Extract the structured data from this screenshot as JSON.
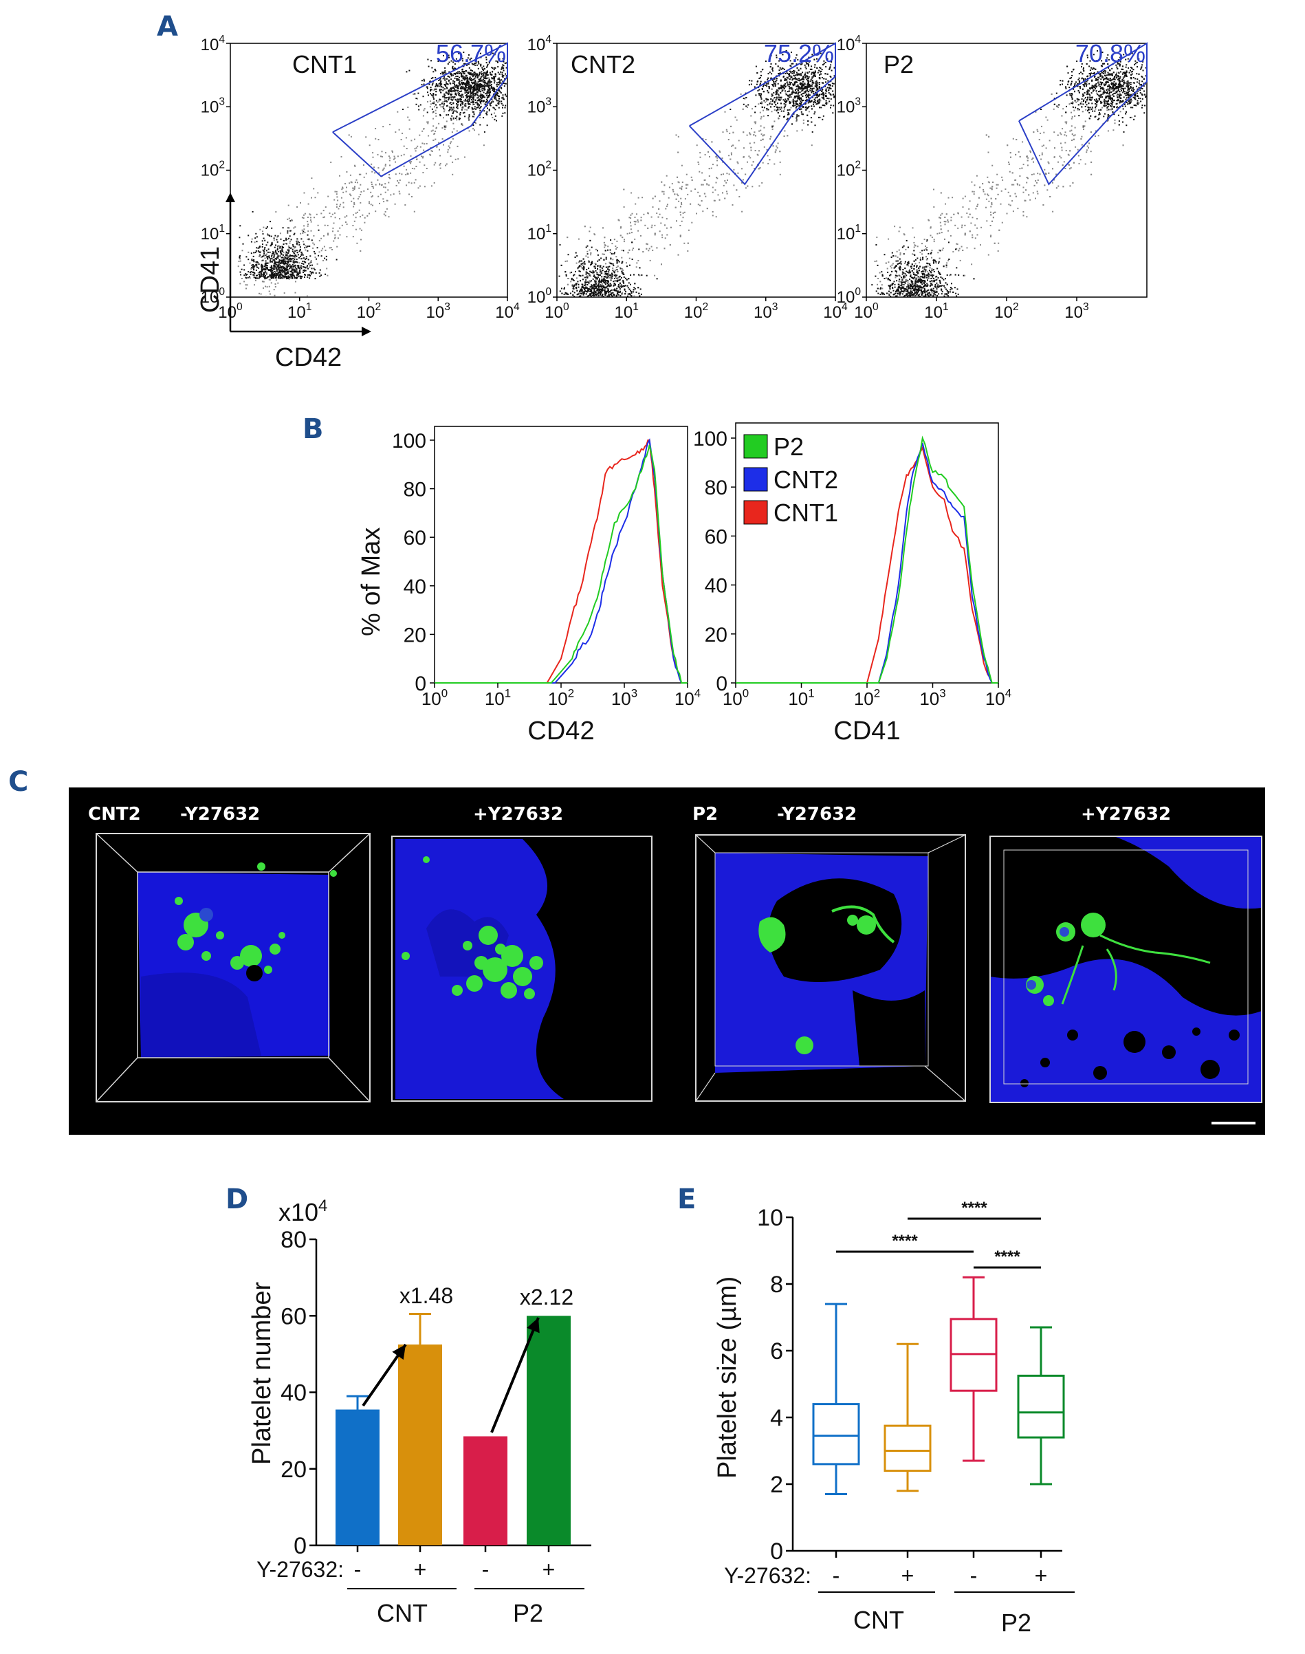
{
  "panels": {
    "A": "A",
    "B": "B",
    "C": "C",
    "D": "D",
    "E": "E"
  },
  "colors": {
    "gate": "#2b3fc7",
    "p2": "#22cc22",
    "cnt2": "#1d2ee8",
    "cnt1": "#e8261d",
    "bar_cnt_minus": "#1070c8",
    "bar_cnt_plus": "#d8900c",
    "bar_p2_minus": "#d81e4a",
    "bar_p2_plus": "#0a8a2a"
  },
  "chart_data": [
    {
      "type": "scatter",
      "panel": "A",
      "title": "CNT1",
      "gate_percent": "56.7%",
      "xlabel": "CD42",
      "ylabel": "CD41",
      "x_scale": "log",
      "y_scale": "log",
      "xlim": [
        1,
        10000
      ],
      "ylim": [
        1,
        10000
      ],
      "x_ticks": [
        "10^0",
        "10^1",
        "10^2",
        "10^3",
        "10^4"
      ],
      "y_ticks": [
        "10^0",
        "10^1",
        "10^2",
        "10^3",
        "10^4"
      ],
      "gate_polygon": [
        [
          30,
          400
        ],
        [
          10000,
          10000
        ],
        [
          10000,
          3000
        ],
        [
          3000,
          500
        ],
        [
          150,
          80
        ],
        [
          30,
          400
        ]
      ],
      "clusters": [
        {
          "x": 5,
          "y": 2,
          "density": "high"
        },
        {
          "x": 3000,
          "y": 2000,
          "density": "high"
        }
      ]
    },
    {
      "type": "scatter",
      "panel": "A",
      "title": "CNT2",
      "gate_percent": "75.2%",
      "x_scale": "log",
      "y_scale": "log",
      "xlim": [
        1,
        10000
      ],
      "ylim": [
        1,
        10000
      ],
      "x_ticks": [
        "10^0",
        "10^1",
        "10^2",
        "10^3",
        "10^4"
      ],
      "y_ticks": [
        "10^0",
        "10^1",
        "10^2",
        "10^3",
        "10^4"
      ],
      "gate_polygon": [
        [
          80,
          500
        ],
        [
          10000,
          10000
        ],
        [
          10000,
          3000
        ],
        [
          2500,
          800
        ],
        [
          500,
          60
        ],
        [
          80,
          500
        ]
      ],
      "clusters": [
        {
          "x": 4,
          "y": 1,
          "density": "medium"
        },
        {
          "x": 3000,
          "y": 2000,
          "density": "high"
        }
      ]
    },
    {
      "type": "scatter",
      "panel": "A",
      "title": "P2",
      "gate_percent": "70.8%",
      "x_scale": "log",
      "y_scale": "log",
      "xlim": [
        1,
        10000
      ],
      "ylim": [
        1,
        10000
      ],
      "x_ticks": [
        "10^0",
        "10^1",
        "10^2",
        "10^3"
      ],
      "y_ticks": [
        "10^0",
        "10^1",
        "10^2",
        "10^3",
        "10^4"
      ],
      "gate_polygon": [
        [
          150,
          600
        ],
        [
          10000,
          10000
        ],
        [
          10000,
          2500
        ],
        [
          3000,
          700
        ],
        [
          400,
          60
        ],
        [
          150,
          600
        ]
      ],
      "clusters": [
        {
          "x": 5,
          "y": 1,
          "density": "medium"
        },
        {
          "x": 3000,
          "y": 2000,
          "density": "high"
        }
      ]
    },
    {
      "type": "line",
      "panel": "B",
      "xlabel": "CD42",
      "ylabel": "% of Max",
      "x_scale": "log",
      "xlim": [
        1,
        10000
      ],
      "ylim": [
        0,
        100
      ],
      "x_ticks": [
        "10^0",
        "10^1",
        "10^2",
        "10^3",
        "10^4"
      ],
      "y_ticks": [
        "0",
        "20",
        "40",
        "60",
        "80",
        "100"
      ],
      "series": [
        {
          "name": "CNT1",
          "x": [
            60,
            100,
            150,
            200,
            300,
            400,
            500,
            700,
            1000,
            1500,
            2000,
            2500,
            3000,
            4000,
            6000,
            8000
          ],
          "y": [
            0,
            10,
            28,
            38,
            58,
            72,
            86,
            90,
            92,
            94,
            96,
            100,
            80,
            40,
            10,
            0
          ]
        },
        {
          "name": "CNT2",
          "x": [
            80,
            150,
            200,
            300,
            400,
            500,
            700,
            1000,
            1500,
            2000,
            2500,
            3000,
            4000,
            6000,
            8000
          ],
          "y": [
            0,
            8,
            14,
            20,
            30,
            42,
            55,
            66,
            80,
            92,
            100,
            85,
            45,
            10,
            0
          ]
        },
        {
          "name": "P2",
          "x": [
            70,
            150,
            200,
            300,
            400,
            500,
            700,
            1000,
            1500,
            2000,
            2500,
            3000,
            4000,
            6000,
            8000
          ],
          "y": [
            0,
            10,
            18,
            28,
            38,
            50,
            66,
            72,
            80,
            90,
            98,
            88,
            45,
            12,
            0
          ]
        }
      ]
    },
    {
      "type": "line",
      "panel": "B",
      "xlabel": "CD41",
      "x_scale": "log",
      "xlim": [
        1,
        10000
      ],
      "ylim": [
        0,
        100
      ],
      "x_ticks": [
        "10^0",
        "10^1",
        "10^2",
        "10^3",
        "10^4"
      ],
      "y_ticks": [
        "0",
        "20",
        "40",
        "60",
        "80",
        "100"
      ],
      "legend": [
        "P2",
        "CNT2",
        "CNT1"
      ],
      "series": [
        {
          "name": "CNT1",
          "x": [
            100,
            150,
            200,
            300,
            400,
            500,
            700,
            1000,
            1500,
            2000,
            3000,
            4000,
            6000,
            8000
          ],
          "y": [
            0,
            18,
            40,
            70,
            85,
            88,
            96,
            80,
            75,
            62,
            55,
            30,
            8,
            0
          ]
        },
        {
          "name": "CNT2",
          "x": [
            150,
            200,
            300,
            400,
            500,
            700,
            1000,
            1500,
            2000,
            3000,
            4000,
            6000,
            8000
          ],
          "y": [
            0,
            12,
            40,
            70,
            86,
            98,
            82,
            78,
            72,
            68,
            35,
            10,
            0
          ]
        },
        {
          "name": "P2",
          "x": [
            150,
            200,
            300,
            400,
            500,
            700,
            1000,
            1500,
            2000,
            3000,
            4000,
            6000,
            8000
          ],
          "y": [
            0,
            10,
            35,
            62,
            80,
            100,
            86,
            84,
            78,
            72,
            40,
            12,
            0
          ]
        }
      ]
    },
    {
      "type": "bar",
      "panel": "D",
      "ylabel": "Platelet number",
      "yunit": "x10^4",
      "ylim": [
        0,
        80
      ],
      "y_ticks": [
        "0",
        "20",
        "40",
        "60",
        "80"
      ],
      "row_label": "Y-27632:",
      "categories": [
        "-",
        "+",
        "-",
        "+"
      ],
      "groups": [
        "CNT",
        "P2"
      ],
      "values": [
        35.5,
        52.5,
        28.5,
        60
      ],
      "errors": [
        3.5,
        8,
        0,
        0
      ],
      "annotations": [
        "x1.48",
        "x2.12"
      ]
    },
    {
      "type": "box",
      "panel": "E",
      "ylabel": "Platelet size (µm)",
      "ylim": [
        0,
        10
      ],
      "y_ticks": [
        "0",
        "2",
        "4",
        "6",
        "8",
        "10"
      ],
      "row_label": "Y-27632:",
      "categories": [
        "-",
        "+",
        "-",
        "+"
      ],
      "groups": [
        "CNT",
        "P2"
      ],
      "boxes": [
        {
          "min": 1.7,
          "q1": 2.6,
          "median": 3.45,
          "q3": 4.4,
          "max": 7.4
        },
        {
          "min": 1.8,
          "q1": 2.4,
          "median": 3.0,
          "q3": 3.75,
          "max": 6.2
        },
        {
          "min": 2.7,
          "q1": 4.8,
          "median": 5.9,
          "q3": 6.95,
          "max": 8.2
        },
        {
          "min": 2.0,
          "q1": 3.4,
          "median": 4.15,
          "q3": 5.25,
          "max": 6.7
        }
      ],
      "significance": [
        {
          "from": 0,
          "to": 2,
          "label": "****"
        },
        {
          "from": 1,
          "to": 3,
          "label": "****"
        },
        {
          "from": 2,
          "to": 3,
          "label": "****"
        }
      ]
    }
  ],
  "panel_c": {
    "labels": [
      "CNT2",
      "-Y27632",
      "+Y27632",
      "P2",
      "-Y27632",
      "+Y27632"
    ]
  }
}
